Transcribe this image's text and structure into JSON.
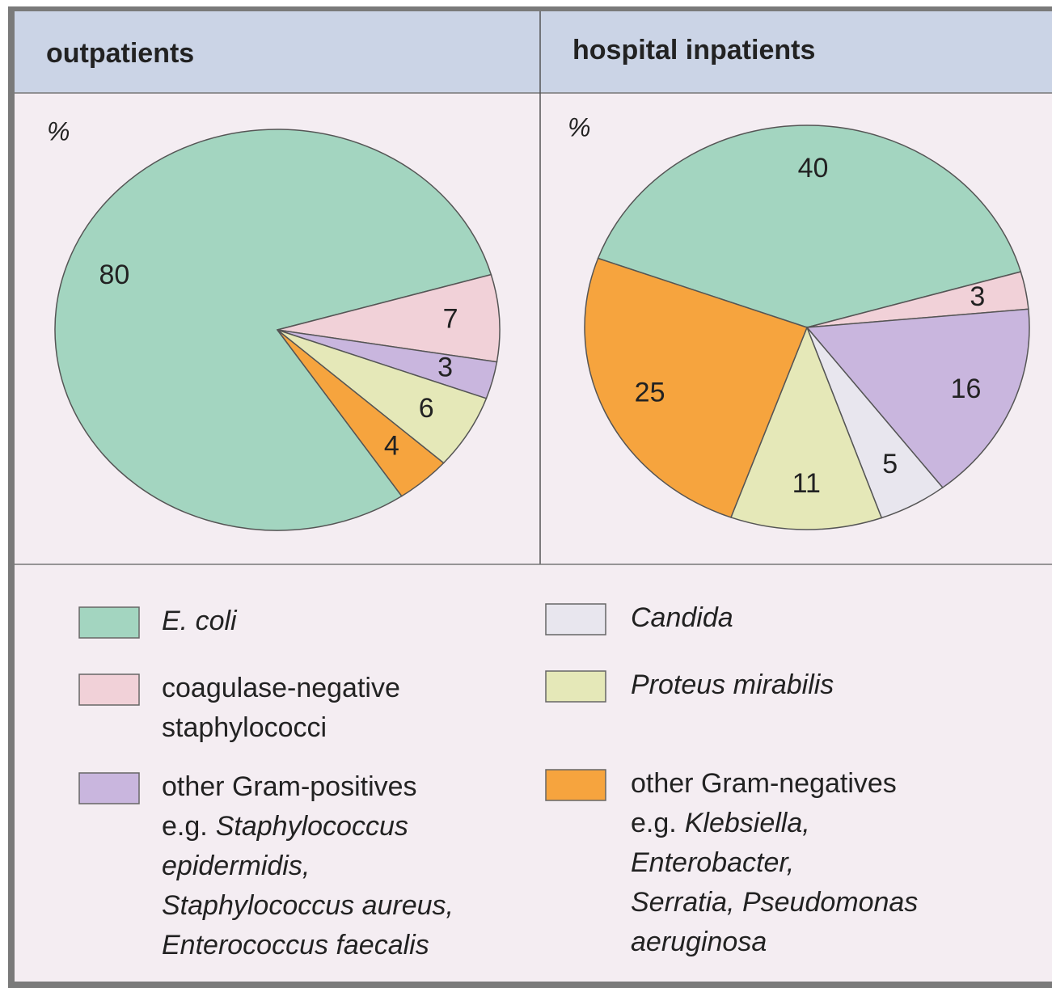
{
  "chart_data": [
    {
      "type": "pie",
      "title": "outpatients",
      "unit": "%",
      "values": [
        80,
        7,
        3,
        6,
        4
      ],
      "colors": [
        "#a3d5c0",
        "#f1d1d8",
        "#c9b6de",
        "#e5e8b8",
        "#f6a43e"
      ]
    },
    {
      "type": "pie",
      "title": "hospital inpatients",
      "unit": "%",
      "values": [
        40,
        3,
        16,
        5,
        11,
        25
      ],
      "colors": [
        "#a3d5c0",
        "#f1d1d8",
        "#c9b6de",
        "#e8e6ee",
        "#e5e8b8",
        "#f6a43e"
      ]
    }
  ],
  "legend": [
    {
      "color": "#a3d5c0",
      "lines": [
        [
          {
            "text": "E. coli",
            "italic": true
          }
        ]
      ]
    },
    {
      "color": "#f1d1d8",
      "lines": [
        [
          {
            "text": "coagulase-negative"
          }
        ],
        [
          {
            "text": "staphylococci"
          }
        ]
      ]
    },
    {
      "color": "#c9b6de",
      "lines": [
        [
          {
            "text": "other Gram-positives"
          }
        ],
        [
          {
            "text": "e.g."
          },
          {
            "text": "Staphylococcus",
            "italic": true
          }
        ],
        [
          {
            "text": "epidermidis,",
            "italic": true
          }
        ],
        [
          {
            "text": "Staphylococcus aureus,",
            "italic": true
          }
        ],
        [
          {
            "text": "Enterococcus faecalis",
            "italic": true
          }
        ]
      ]
    },
    {
      "color": "#e8e6ee",
      "lines": [
        [
          {
            "text": "Candida",
            "italic": true
          }
        ]
      ]
    },
    {
      "color": "#e5e8b8",
      "lines": [
        [
          {
            "text": "Proteus mirabilis",
            "italic": true
          }
        ]
      ]
    },
    {
      "color": "#f6a43e",
      "lines": [
        [
          {
            "text": "other Gram-negatives"
          }
        ],
        [
          {
            "text": "e.g."
          },
          {
            "text": "Klebsiella,",
            "italic": true
          }
        ],
        [
          {
            "text": "Enterobacter,",
            "italic": true
          }
        ],
        [
          {
            "text": "Serratia, Pseudomonas",
            "italic": true
          }
        ],
        [
          {
            "text": "aeruginosa",
            "italic": true
          }
        ]
      ]
    }
  ]
}
